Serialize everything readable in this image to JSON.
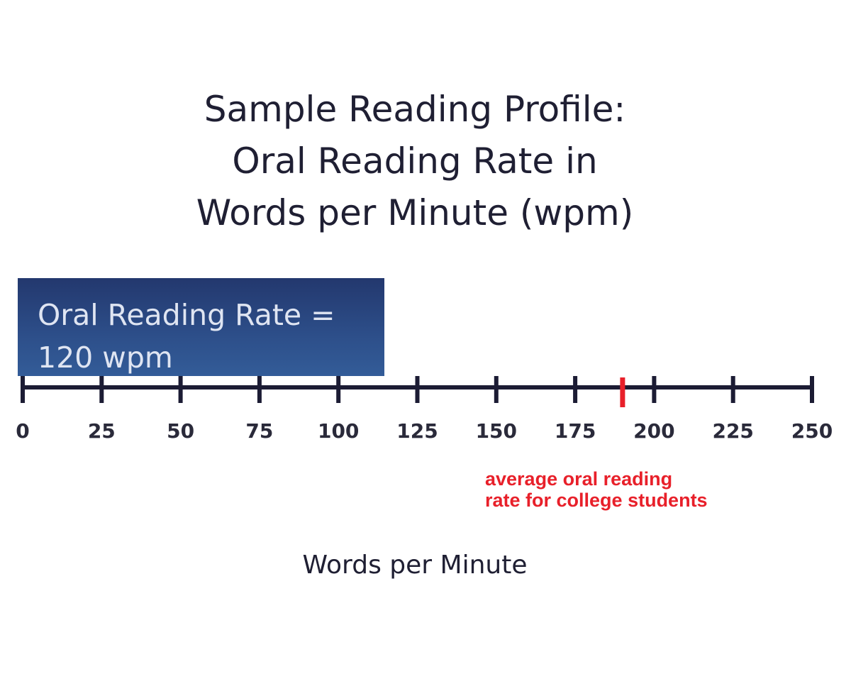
{
  "chart_data": {
    "type": "bar",
    "title": [
      "Sample Reading Profile:",
      "Oral Reading Rate in",
      "Words per Minute (wpm)"
    ],
    "xlabel": "Words per Minute",
    "xlim": [
      0,
      250
    ],
    "ticks": [
      0,
      25,
      50,
      75,
      100,
      125,
      150,
      175,
      200,
      225,
      250
    ],
    "tick_labels": [
      "0",
      "25",
      "50",
      "75",
      "100",
      "125",
      "150",
      "175",
      "200",
      "225",
      "250"
    ],
    "bar": {
      "value": 120,
      "label_line1": "Oral Reading Rate =",
      "label_line2": "120 wpm",
      "color": "#2d4f8a"
    },
    "marker": {
      "value": 190,
      "color": "#e8202a",
      "label_line1": "average oral reading",
      "label_line2": "rate for college students"
    },
    "axis_color": "#1c1c34",
    "grid": false
  }
}
